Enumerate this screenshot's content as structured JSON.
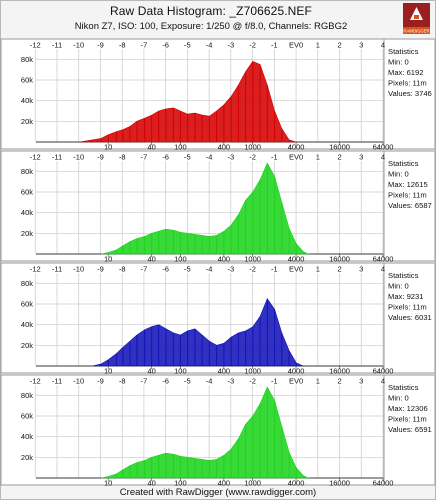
{
  "title": "Raw Data Histogram: _Z706625.NEF",
  "subtitle": "Nikon Z7, ISO: 100, Exposure: 1/250 @ f/8.0, Channels: RGBG2",
  "footer": "Created with RawDigger (www.rawdigger.com)",
  "logo": {
    "label": "RAWDIGGER",
    "colors": {
      "top": "#9a1f1f",
      "bottom": "#d8531a",
      "digger": "#ffffff"
    }
  },
  "colors": {
    "R": "#d40000",
    "G": "#1ed41e",
    "B": "#1313b8",
    "G2": "#1ed41e",
    "panel_bg": "#ffffff",
    "grid": "#c8c8c8",
    "zero_line": "#3a3a3a"
  },
  "chart_data": [
    {
      "type": "area",
      "channel": "R",
      "xscale": "log2",
      "xlim": [
        1,
        64000
      ],
      "ylim": [
        0,
        90000
      ],
      "ev_ticks": [
        "-12",
        "-11",
        "-10",
        "-9",
        "-8",
        "-7",
        "-6",
        "-5",
        "-4",
        "-3",
        "-2",
        "-1",
        "EV0",
        "1",
        "2",
        "3",
        "4"
      ],
      "x_ticks": [
        "10",
        "40",
        "100",
        "400",
        "1000",
        "4000",
        "16000",
        "64000"
      ],
      "y_ticks": [
        "20k",
        "40k",
        "60k",
        "80k"
      ],
      "x": [
        4,
        6,
        8,
        10,
        13,
        16,
        20,
        25,
        32,
        40,
        50,
        63,
        80,
        100,
        126,
        159,
        200,
        252,
        317,
        400,
        504,
        635,
        800,
        1008,
        1270,
        1600,
        2016,
        2540,
        3200,
        4032
      ],
      "y": [
        0,
        2000,
        3500,
        7000,
        10000,
        12000,
        15000,
        20000,
        23000,
        26000,
        30000,
        32000,
        33000,
        30000,
        27000,
        28000,
        26000,
        25000,
        30000,
        36000,
        44000,
        55000,
        68000,
        78000,
        75000,
        55000,
        30000,
        13000,
        2000,
        0
      ],
      "stats": {
        "title": "Statistics",
        "min": "Min: 0",
        "max": "Max: 6192",
        "pixels": "Pixels: 11m",
        "values": "Values: 3746"
      }
    },
    {
      "type": "area",
      "channel": "G",
      "xscale": "log2",
      "xlim": [
        1,
        64000
      ],
      "ylim": [
        0,
        90000
      ],
      "ev_ticks": [
        "-12",
        "-11",
        "-10",
        "-9",
        "-8",
        "-7",
        "-6",
        "-5",
        "-4",
        "-3",
        "-2",
        "-1",
        "EV0",
        "1",
        "2",
        "3",
        "4"
      ],
      "x_ticks": [
        "10",
        "40",
        "100",
        "400",
        "1000",
        "4000",
        "16000",
        "64000"
      ],
      "y_ticks": [
        "20k",
        "40k",
        "60k",
        "80k"
      ],
      "x": [
        8,
        10,
        13,
        16,
        20,
        25,
        32,
        40,
        50,
        63,
        80,
        100,
        126,
        159,
        200,
        252,
        317,
        400,
        504,
        635,
        800,
        1008,
        1270,
        1600,
        2016,
        2540,
        3200,
        4032,
        5080,
        6000
      ],
      "y": [
        0,
        1500,
        4000,
        8000,
        12000,
        15000,
        17000,
        20000,
        22000,
        24000,
        23000,
        21000,
        20000,
        19000,
        18000,
        17000,
        18000,
        22000,
        28000,
        38000,
        52000,
        60000,
        72000,
        88000,
        75000,
        50000,
        25000,
        10000,
        2000,
        0
      ],
      "stats": {
        "title": "Statistics",
        "min": "Min: 0",
        "max": "Max: 12615",
        "pixels": "Pixels: 11m",
        "values": "Values: 6587"
      }
    },
    {
      "type": "area",
      "channel": "B",
      "xscale": "log2",
      "xlim": [
        1,
        64000
      ],
      "ylim": [
        0,
        90000
      ],
      "ev_ticks": [
        "-12",
        "-11",
        "-10",
        "-9",
        "-8",
        "-7",
        "-6",
        "-5",
        "-4",
        "-3",
        "-2",
        "-1",
        "EV0",
        "1",
        "2",
        "3",
        "4"
      ],
      "x_ticks": [
        "10",
        "40",
        "100",
        "400",
        "1000",
        "4000",
        "16000",
        "64000"
      ],
      "y_ticks": [
        "20k",
        "40k",
        "60k",
        "80k"
      ],
      "x": [
        6,
        8,
        10,
        13,
        16,
        20,
        25,
        32,
        40,
        50,
        63,
        80,
        100,
        126,
        159,
        200,
        252,
        317,
        400,
        504,
        635,
        800,
        1008,
        1270,
        1600,
        2016,
        2540,
        3200,
        4032,
        5000
      ],
      "y": [
        0,
        2000,
        6000,
        12000,
        18000,
        24000,
        30000,
        35000,
        38000,
        40000,
        36000,
        32000,
        30000,
        34000,
        36000,
        30000,
        24000,
        20000,
        22000,
        28000,
        32000,
        34000,
        38000,
        48000,
        65000,
        55000,
        32000,
        15000,
        3000,
        0
      ],
      "stats": {
        "title": "Statistics",
        "min": "Min: 0",
        "max": "Max: 9231",
        "pixels": "Pixels: 11m",
        "values": "Values: 6031"
      }
    },
    {
      "type": "area",
      "channel": "G2",
      "xscale": "log2",
      "xlim": [
        1,
        64000
      ],
      "ylim": [
        0,
        90000
      ],
      "ev_ticks": [
        "-12",
        "-11",
        "-10",
        "-9",
        "-8",
        "-7",
        "-6",
        "-5",
        "-4",
        "-3",
        "-2",
        "-1",
        "EV0",
        "1",
        "2",
        "3",
        "4"
      ],
      "x_ticks": [
        "10",
        "40",
        "100",
        "400",
        "1000",
        "4000",
        "16000",
        "64000"
      ],
      "y_ticks": [
        "20k",
        "40k",
        "60k",
        "80k"
      ],
      "x": [
        8,
        10,
        13,
        16,
        20,
        25,
        32,
        40,
        50,
        63,
        80,
        100,
        126,
        159,
        200,
        252,
        317,
        400,
        504,
        635,
        800,
        1008,
        1270,
        1600,
        2016,
        2540,
        3200,
        4032,
        5080,
        6000
      ],
      "y": [
        0,
        1500,
        4000,
        8000,
        12000,
        15000,
        17000,
        20000,
        22000,
        24000,
        23000,
        21000,
        20000,
        19000,
        18000,
        17000,
        18000,
        22000,
        28000,
        38000,
        52000,
        60000,
        72000,
        88000,
        75000,
        50000,
        25000,
        10000,
        2000,
        0
      ],
      "stats": {
        "title": "Statistics",
        "min": "Min: 0",
        "max": "Max: 12306",
        "pixels": "Pixels: 11m",
        "values": "Values: 6591"
      }
    }
  ]
}
